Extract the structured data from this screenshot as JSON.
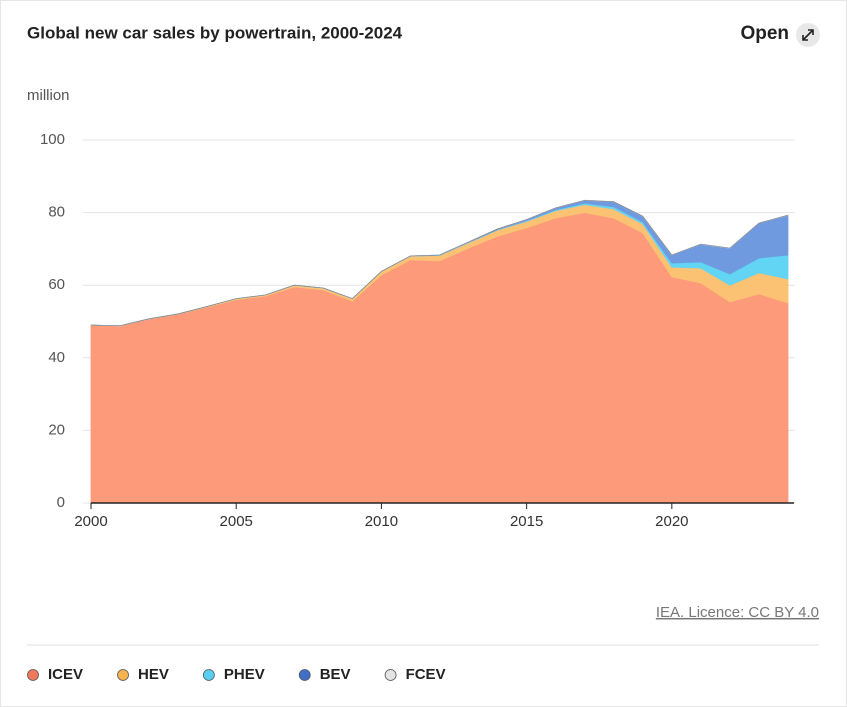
{
  "open_button": "Open",
  "source": "IEA. Licence: CC BY 4.0",
  "chart_data": {
    "type": "stacked_area",
    "title": "Global new car sales by powertrain, 2000-2024",
    "y_label": "million",
    "x": [
      2000,
      2001,
      2002,
      2003,
      2004,
      2005,
      2006,
      2007,
      2008,
      2009,
      2010,
      2011,
      2012,
      2013,
      2014,
      2015,
      2016,
      2017,
      2018,
      2019,
      2020,
      2021,
      2022,
      2023,
      2024
    ],
    "xlim": [
      2000,
      2024
    ],
    "xticks": [
      2000,
      2005,
      2010,
      2015,
      2020
    ],
    "ylim": [
      0,
      100
    ],
    "yticks": [
      0,
      20,
      40,
      60,
      80,
      100
    ],
    "grid": true,
    "legend": "bottom",
    "series": [
      {
        "name": "ICEV",
        "color": "#fc9a7a",
        "values": [
          49.0,
          48.8,
          50.7,
          52.0,
          54.0,
          56.0,
          57.0,
          59.5,
          58.7,
          55.6,
          62.8,
          67.0,
          66.7,
          70.2,
          73.5,
          75.8,
          78.5,
          80.0,
          78.5,
          74.4,
          62.3,
          60.6,
          55.4,
          57.6,
          55.1
        ]
      },
      {
        "name": "HEV",
        "color": "#fbc273",
        "values": [
          0.01,
          0.03,
          0.04,
          0.09,
          0.14,
          0.3,
          0.3,
          0.5,
          0.5,
          0.7,
          1.0,
          1.0,
          1.5,
          1.5,
          1.7,
          1.8,
          2.0,
          2.2,
          2.5,
          2.5,
          2.7,
          4.1,
          4.6,
          5.8,
          6.6
        ]
      },
      {
        "name": "PHEV",
        "color": "#62d4f4",
        "values": [
          0,
          0,
          0,
          0,
          0,
          0,
          0,
          0,
          0,
          0,
          0,
          0.01,
          0.06,
          0.1,
          0.1,
          0.2,
          0.3,
          0.4,
          0.6,
          0.5,
          1.1,
          1.7,
          3.1,
          4.1,
          6.6
        ]
      },
      {
        "name": "BEV",
        "color": "#6f9ae0",
        "values": [
          0,
          0,
          0,
          0,
          0,
          0,
          0,
          0,
          0,
          0,
          0,
          0.04,
          0.06,
          0.1,
          0.2,
          0.3,
          0.5,
          0.8,
          1.4,
          1.6,
          2.2,
          4.9,
          7.1,
          9.6,
          11.0
        ]
      },
      {
        "name": "FCEV",
        "color": "#e2e2e2",
        "values": [
          0,
          0,
          0,
          0,
          0,
          0,
          0,
          0,
          0,
          0,
          0,
          0,
          0,
          0,
          0,
          0.001,
          0.002,
          0.003,
          0.004,
          0.008,
          0.009,
          0.016,
          0.015,
          0.004,
          0.003
        ]
      }
    ]
  }
}
